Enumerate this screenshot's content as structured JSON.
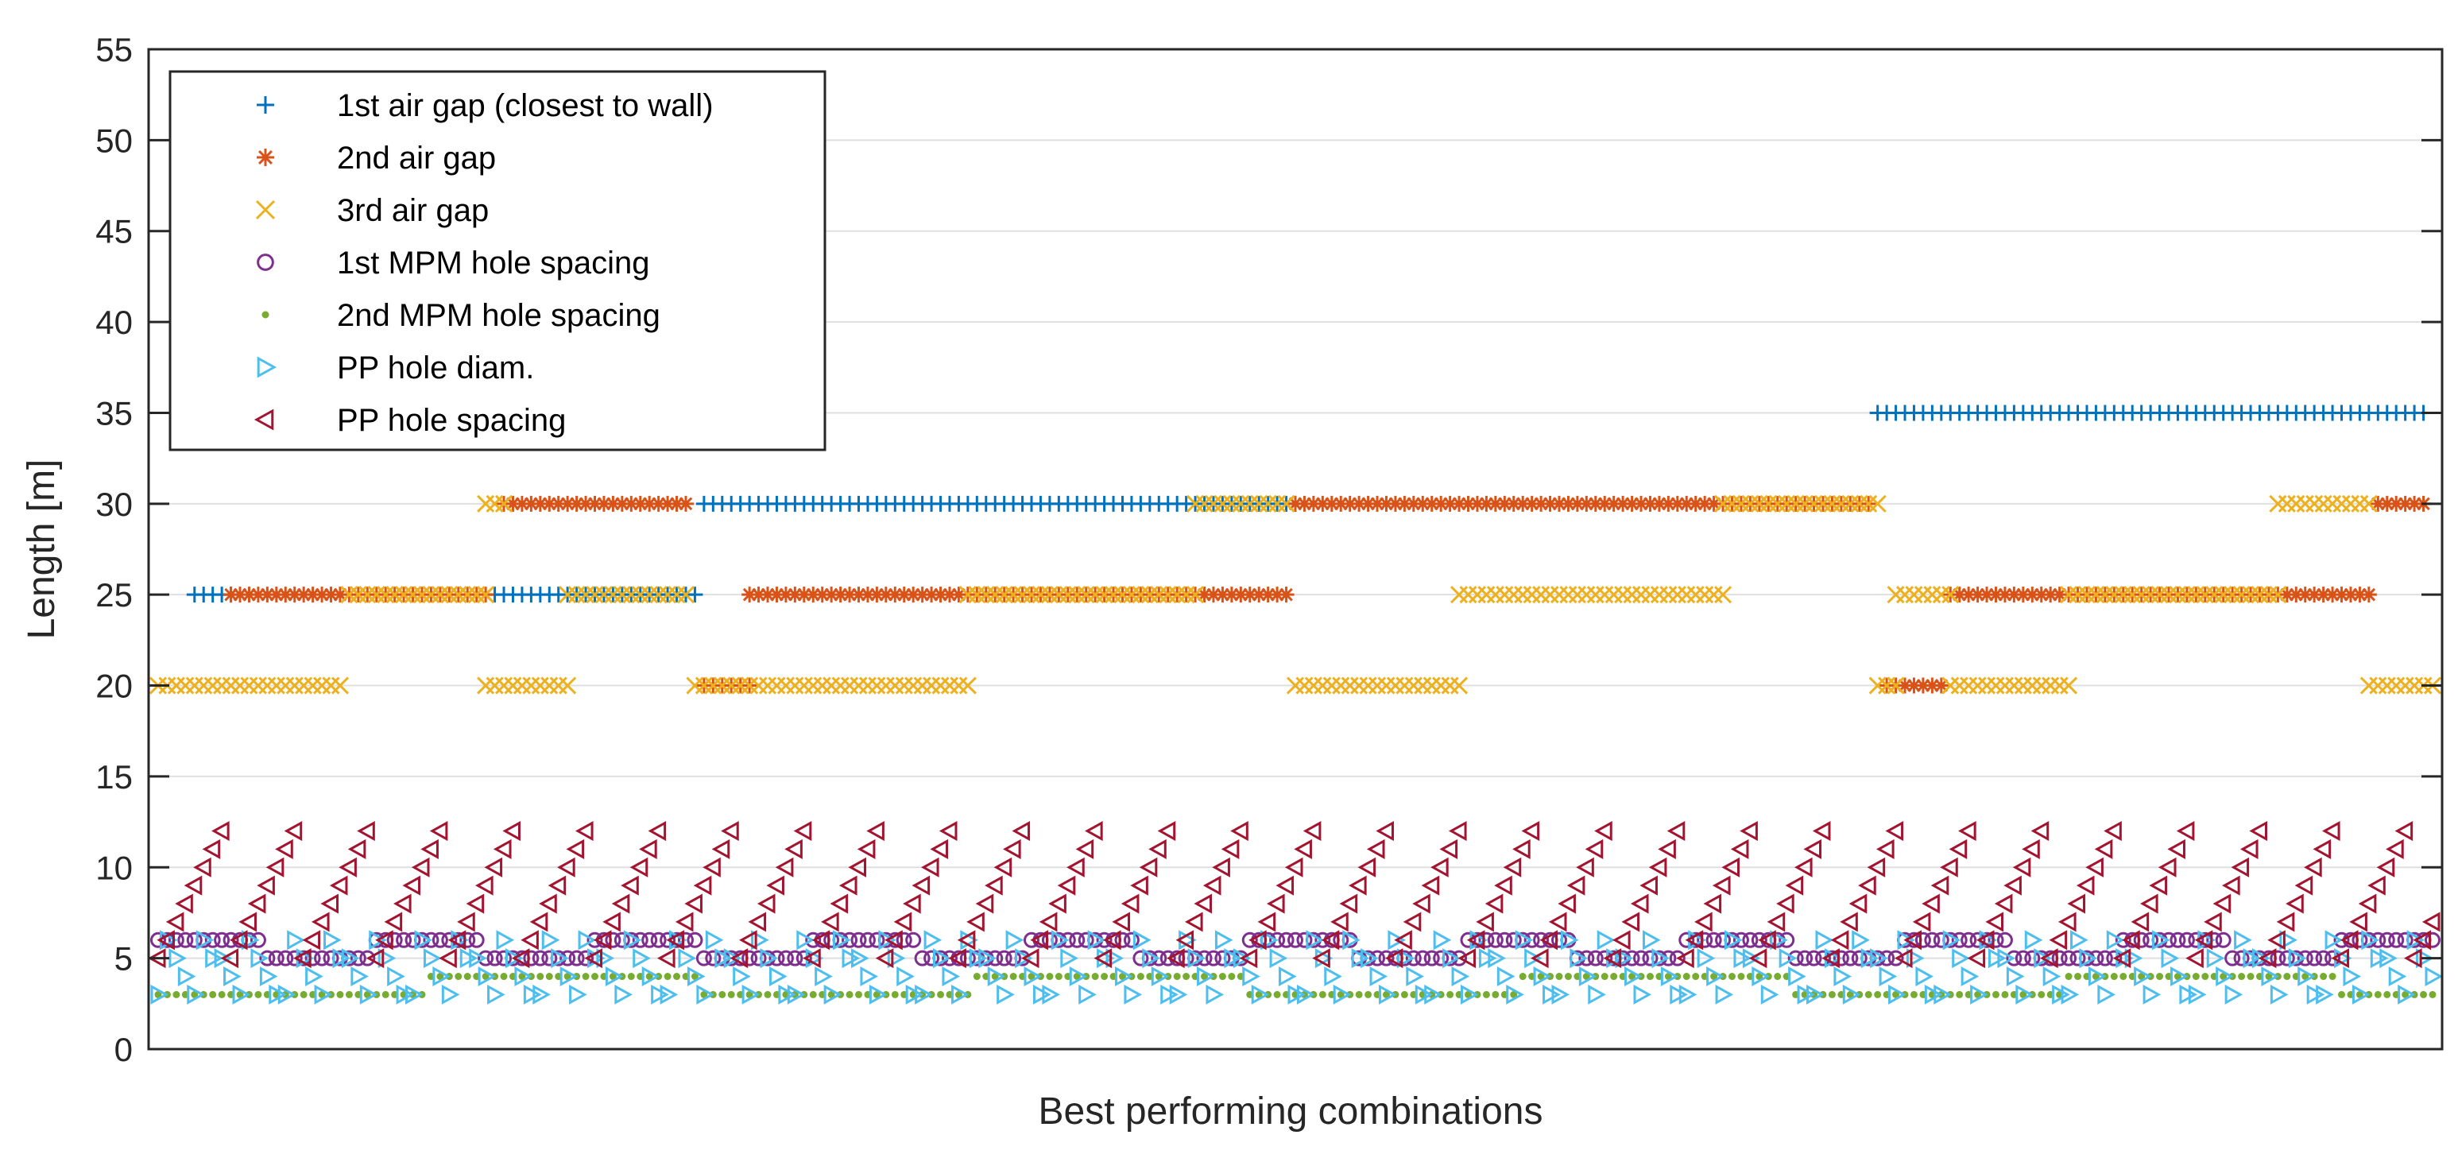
{
  "chart_data": {
    "type": "scatter",
    "xlabel": "Best performing combinations",
    "ylabel": "Length [m]",
    "ylim": [
      0,
      55
    ],
    "yticks": [
      0,
      5,
      10,
      15,
      20,
      25,
      30,
      35,
      40,
      45,
      50,
      55
    ],
    "xlim": [
      0,
      250
    ],
    "grid": "y",
    "legend_position": "top-left",
    "legend": [
      "1st air gap (closest to wall)",
      "2nd air gap",
      "3rd air gap",
      "1st MPM hole spacing",
      "2nd MPM hole spacing",
      "PP hole diam.",
      "PP hole spacing"
    ],
    "series": [
      {
        "name": "1st air gap (closest to wall)",
        "marker": "plus",
        "color": "#0072BD",
        "segments": [
          {
            "x0": 4,
            "x1": 8,
            "step": 1,
            "y": 25
          },
          {
            "x0": 37,
            "x1": 59,
            "step": 1,
            "y": 25
          },
          {
            "x0": 60,
            "x1": 125,
            "step": 1,
            "y": 30
          },
          {
            "x0": 189,
            "x1": 249,
            "step": 1,
            "y": 35
          }
        ]
      },
      {
        "name": "2nd air gap",
        "marker": "asterisk",
        "color": "#D95319",
        "segments": [
          {
            "x0": 8,
            "x1": 36,
            "step": 1,
            "y": 25
          },
          {
            "x0": 38,
            "x1": 58,
            "step": 1,
            "y": 30
          },
          {
            "x0": 60,
            "x1": 65,
            "step": 1,
            "y": 20
          },
          {
            "x0": 65,
            "x1": 124,
            "step": 1,
            "y": 25
          },
          {
            "x0": 125,
            "x1": 188,
            "step": 1,
            "y": 30
          },
          {
            "x0": 190,
            "x1": 196,
            "step": 1,
            "y": 20
          },
          {
            "x0": 197,
            "x1": 243,
            "step": 1,
            "y": 25
          },
          {
            "x0": 244,
            "x1": 249,
            "step": 1,
            "y": 30
          }
        ]
      },
      {
        "name": "3rd air gap",
        "marker": "x",
        "color": "#EDB120",
        "segments": [
          {
            "x0": 0,
            "x1": 20,
            "step": 1,
            "y": 20
          },
          {
            "x0": 21,
            "x1": 36,
            "step": 1,
            "y": 25
          },
          {
            "x0": 36,
            "x1": 45,
            "step": 1,
            "y": 20
          },
          {
            "x0": 36,
            "x1": 38,
            "step": 1,
            "y": 30
          },
          {
            "x0": 45,
            "x1": 58,
            "step": 1,
            "y": 25
          },
          {
            "x0": 59,
            "x1": 89,
            "step": 1,
            "y": 20
          },
          {
            "x0": 89,
            "x1": 114,
            "step": 1,
            "y": 25
          },
          {
            "x0": 114,
            "x1": 124,
            "step": 1,
            "y": 30
          },
          {
            "x0": 125,
            "x1": 143,
            "step": 1,
            "y": 20
          },
          {
            "x0": 143,
            "x1": 172,
            "step": 1,
            "y": 25
          },
          {
            "x0": 172,
            "x1": 189,
            "step": 1,
            "y": 30
          },
          {
            "x0": 189,
            "x1": 191,
            "step": 1,
            "y": 20
          },
          {
            "x0": 191,
            "x1": 197,
            "step": 1,
            "y": 25
          },
          {
            "x0": 197,
            "x1": 210,
            "step": 1,
            "y": 20
          },
          {
            "x0": 210,
            "x1": 233,
            "step": 1,
            "y": 25
          },
          {
            "x0": 233,
            "x1": 243,
            "step": 1,
            "y": 30
          },
          {
            "x0": 243,
            "x1": 250,
            "step": 1,
            "y": 20
          }
        ]
      },
      {
        "name": "1st MPM hole spacing",
        "marker": "circle",
        "color": "#7E2F8E",
        "pattern_y": [
          6,
          5
        ],
        "pattern_run": 12
      },
      {
        "name": "2nd MPM hole spacing",
        "marker": "dot",
        "color": "#77AC30",
        "pattern_y": [
          3,
          4
        ],
        "pattern_run": 30
      },
      {
        "name": "PP hole diam.",
        "marker": "triangle-right",
        "color": "#4DBEEE",
        "pattern_y": [
          3,
          4,
          5,
          6
        ],
        "pattern_run": 1
      },
      {
        "name": "PP hole spacing",
        "marker": "triangle-left",
        "color": "#A2142F",
        "sawtooth": {
          "y_min": 5,
          "y_max": 12,
          "period": 8
        }
      }
    ]
  }
}
